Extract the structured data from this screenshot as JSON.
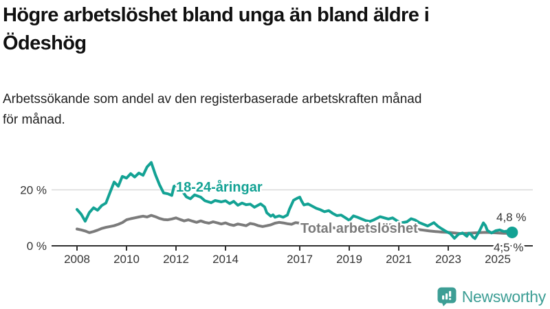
{
  "page": {
    "title": "Högre arbetslöshet bland unga än bland äldre i Ödeshög",
    "title_line1": "Högre arbetslöshet bland unga än bland äldre i",
    "title_line2": "Ödeshög",
    "subtitle": "Arbetssökande som andel av den registerbaserade arbetskraften månad för månad.",
    "subtitle_line1": "Arbetssökande som andel av den registerbaserade arbetskraften månad",
    "subtitle_line2": "för månad.",
    "brand": {
      "name": "Newsworthy",
      "color": "#3d9e95"
    }
  },
  "chart_data": {
    "type": "line",
    "title": "Högre arbetslöshet bland unga än bland äldre i Ödeshög",
    "subtitle": "Arbetssökande som andel av den registerbaserade arbetskraften månad för månad.",
    "unit": "%",
    "x_ticks": [
      2008,
      2010,
      2012,
      2014,
      2017,
      2019,
      2021,
      2023,
      2025
    ],
    "y_ticks": [
      {
        "value": 20,
        "label": "20 %"
      },
      {
        "value": 0,
        "label": "0 %"
      }
    ],
    "xlim": [
      2007.9,
      2025.9
    ],
    "ylim": [
      0,
      31
    ],
    "grid": "horizontal-gridline-at-20-only",
    "legend_position": "inline-labels-on-lines",
    "axis_color": "#333333",
    "gridline_color": "#dadada",
    "series": [
      {
        "name": "18-24-åringar",
        "color": "#13a294",
        "end_label": "4,8 %",
        "end_value": 4.8,
        "end_dot": true,
        "points": [
          [
            2008.0,
            13.0
          ],
          [
            2008.17,
            11.3
          ],
          [
            2008.33,
            8.8
          ],
          [
            2008.5,
            11.9
          ],
          [
            2008.67,
            13.6
          ],
          [
            2008.83,
            12.7
          ],
          [
            2009.0,
            14.4
          ],
          [
            2009.17,
            15.3
          ],
          [
            2009.33,
            19.0
          ],
          [
            2009.5,
            22.8
          ],
          [
            2009.67,
            21.3
          ],
          [
            2009.83,
            24.8
          ],
          [
            2010.0,
            24.2
          ],
          [
            2010.17,
            25.8
          ],
          [
            2010.33,
            24.6
          ],
          [
            2010.5,
            26.0
          ],
          [
            2010.67,
            25.2
          ],
          [
            2010.83,
            28.2
          ],
          [
            2011.0,
            29.8
          ],
          [
            2011.17,
            25.4
          ],
          [
            2011.33,
            21.9
          ],
          [
            2011.5,
            18.9
          ],
          [
            2011.67,
            18.6
          ],
          [
            2011.83,
            18.0
          ],
          [
            2011.92,
            21.3
          ],
          [
            2012.08,
            21.7
          ],
          [
            2012.25,
            19.6
          ],
          [
            2012.42,
            17.5
          ],
          [
            2012.58,
            16.8
          ],
          [
            2012.75,
            18.2
          ],
          [
            2013.0,
            17.4
          ],
          [
            2013.17,
            16.1
          ],
          [
            2013.42,
            15.4
          ],
          [
            2013.58,
            16.2
          ],
          [
            2013.83,
            15.7
          ],
          [
            2014.0,
            16.1
          ],
          [
            2014.17,
            15.1
          ],
          [
            2014.33,
            15.9
          ],
          [
            2014.5,
            14.5
          ],
          [
            2014.67,
            15.3
          ],
          [
            2014.83,
            14.7
          ],
          [
            2015.0,
            14.9
          ],
          [
            2015.17,
            13.8
          ],
          [
            2015.42,
            15.0
          ],
          [
            2015.58,
            13.9
          ],
          [
            2015.67,
            11.8
          ],
          [
            2015.83,
            10.6
          ],
          [
            2015.92,
            11.1
          ],
          [
            2016.0,
            10.2
          ],
          [
            2016.17,
            10.7
          ],
          [
            2016.33,
            10.2
          ],
          [
            2016.5,
            11.0
          ],
          [
            2016.58,
            13.0
          ],
          [
            2016.75,
            16.3
          ],
          [
            2016.92,
            17.1
          ],
          [
            2017.0,
            17.4
          ],
          [
            2017.08,
            15.9
          ],
          [
            2017.17,
            14.6
          ],
          [
            2017.33,
            15.0
          ],
          [
            2017.5,
            14.2
          ],
          [
            2017.67,
            13.4
          ],
          [
            2017.83,
            12.9
          ],
          [
            2018.0,
            12.2
          ],
          [
            2018.17,
            12.6
          ],
          [
            2018.33,
            11.6
          ],
          [
            2018.5,
            10.8
          ],
          [
            2018.67,
            11.0
          ],
          [
            2018.83,
            10.1
          ],
          [
            2019.0,
            9.1
          ],
          [
            2019.17,
            10.7
          ],
          [
            2019.33,
            10.2
          ],
          [
            2019.5,
            9.6
          ],
          [
            2019.67,
            9.0
          ],
          [
            2019.83,
            8.7
          ],
          [
            2020.0,
            9.3
          ],
          [
            2020.25,
            10.4
          ],
          [
            2020.42,
            10.0
          ],
          [
            2020.58,
            9.6
          ],
          [
            2020.75,
            10.0
          ],
          [
            2020.92,
            9.0
          ],
          [
            2021.08,
            8.2
          ],
          [
            2021.33,
            8.6
          ],
          [
            2021.5,
            9.7
          ],
          [
            2021.67,
            9.2
          ],
          [
            2021.83,
            8.3
          ],
          [
            2022.0,
            7.7
          ],
          [
            2022.17,
            7.1
          ],
          [
            2022.42,
            8.3
          ],
          [
            2022.58,
            7.0
          ],
          [
            2022.75,
            6.0
          ],
          [
            2022.92,
            5.1
          ],
          [
            2023.08,
            4.4
          ],
          [
            2023.25,
            2.7
          ],
          [
            2023.42,
            4.2
          ],
          [
            2023.58,
            4.6
          ],
          [
            2023.75,
            3.4
          ],
          [
            2023.83,
            4.5
          ],
          [
            2023.92,
            4.1
          ],
          [
            2024.0,
            3.1
          ],
          [
            2024.08,
            2.6
          ],
          [
            2024.25,
            5.1
          ],
          [
            2024.42,
            8.2
          ],
          [
            2024.5,
            7.3
          ],
          [
            2024.58,
            5.5
          ],
          [
            2024.75,
            4.6
          ],
          [
            2024.92,
            5.4
          ],
          [
            2025.08,
            5.7
          ],
          [
            2025.25,
            5.1
          ],
          [
            2025.42,
            5.3
          ],
          [
            2025.58,
            4.8
          ]
        ]
      },
      {
        "name": "Total arbetslöshet",
        "color": "#7b7b7b",
        "end_label": "4,5 %",
        "end_value": 4.5,
        "end_dot": false,
        "points": [
          [
            2008.0,
            6.0
          ],
          [
            2008.17,
            5.7
          ],
          [
            2008.33,
            5.3
          ],
          [
            2008.5,
            4.7
          ],
          [
            2008.67,
            5.1
          ],
          [
            2008.83,
            5.6
          ],
          [
            2009.0,
            6.2
          ],
          [
            2009.17,
            6.6
          ],
          [
            2009.33,
            6.9
          ],
          [
            2009.5,
            7.2
          ],
          [
            2009.67,
            7.7
          ],
          [
            2009.83,
            8.3
          ],
          [
            2010.0,
            9.3
          ],
          [
            2010.17,
            9.7
          ],
          [
            2010.33,
            10.0
          ],
          [
            2010.5,
            10.3
          ],
          [
            2010.67,
            10.6
          ],
          [
            2010.83,
            10.3
          ],
          [
            2011.0,
            10.9
          ],
          [
            2011.17,
            10.4
          ],
          [
            2011.33,
            9.8
          ],
          [
            2011.5,
            9.4
          ],
          [
            2011.67,
            9.3
          ],
          [
            2011.83,
            9.6
          ],
          [
            2012.0,
            10.0
          ],
          [
            2012.17,
            9.4
          ],
          [
            2012.33,
            8.9
          ],
          [
            2012.5,
            9.3
          ],
          [
            2012.67,
            8.8
          ],
          [
            2012.83,
            8.4
          ],
          [
            2013.0,
            8.9
          ],
          [
            2013.17,
            8.4
          ],
          [
            2013.33,
            8.1
          ],
          [
            2013.5,
            8.6
          ],
          [
            2013.67,
            8.2
          ],
          [
            2013.83,
            7.8
          ],
          [
            2014.0,
            8.2
          ],
          [
            2014.17,
            7.6
          ],
          [
            2014.33,
            7.3
          ],
          [
            2014.5,
            7.8
          ],
          [
            2014.67,
            7.5
          ],
          [
            2014.83,
            7.2
          ],
          [
            2015.0,
            8.0
          ],
          [
            2015.17,
            7.7
          ],
          [
            2015.33,
            7.2
          ],
          [
            2015.5,
            6.9
          ],
          [
            2015.67,
            7.2
          ],
          [
            2015.83,
            7.5
          ],
          [
            2016.0,
            8.1
          ],
          [
            2016.17,
            8.4
          ],
          [
            2016.33,
            8.2
          ],
          [
            2016.5,
            7.9
          ],
          [
            2016.67,
            7.7
          ],
          [
            2016.83,
            8.3
          ],
          [
            2017.0,
            8.1
          ],
          [
            2017.17,
            7.6
          ],
          [
            2017.33,
            7.2
          ],
          [
            2017.5,
            6.6
          ],
          [
            2017.67,
            6.9
          ],
          [
            2017.83,
            7.1
          ],
          [
            2018.0,
            7.0
          ],
          [
            2018.25,
            6.6
          ],
          [
            2018.5,
            6.3
          ],
          [
            2018.75,
            6.0
          ],
          [
            2019.0,
            5.8
          ],
          [
            2019.25,
            6.0
          ],
          [
            2019.5,
            6.2
          ],
          [
            2019.75,
            6.4
          ],
          [
            2020.0,
            6.6
          ],
          [
            2020.25,
            7.4
          ],
          [
            2020.5,
            7.7
          ],
          [
            2020.75,
            7.4
          ],
          [
            2021.0,
            7.0
          ],
          [
            2021.25,
            6.6
          ],
          [
            2021.5,
            6.3
          ],
          [
            2021.75,
            5.9
          ],
          [
            2022.0,
            5.6
          ],
          [
            2022.25,
            5.3
          ],
          [
            2022.5,
            5.1
          ],
          [
            2022.75,
            4.9
          ],
          [
            2023.0,
            4.8
          ],
          [
            2023.25,
            4.6
          ],
          [
            2023.5,
            4.4
          ],
          [
            2023.75,
            4.5
          ],
          [
            2024.0,
            4.6
          ],
          [
            2024.25,
            4.7
          ],
          [
            2024.5,
            4.8
          ],
          [
            2024.75,
            4.7
          ],
          [
            2025.0,
            4.6
          ],
          [
            2025.25,
            4.5
          ],
          [
            2025.5,
            4.5
          ]
        ]
      }
    ]
  }
}
